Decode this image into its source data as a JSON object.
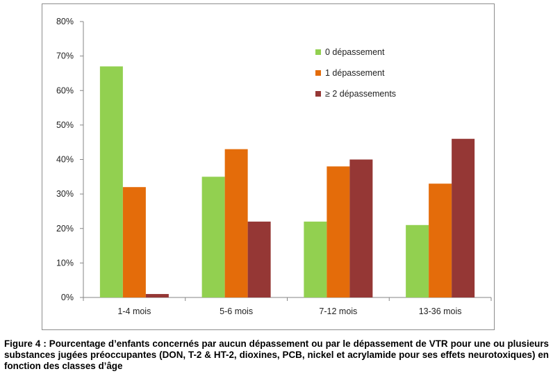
{
  "chart_data": {
    "type": "bar",
    "categories": [
      "1-4 mois",
      "5-6 mois",
      "7-12 mois",
      "13-36 mois"
    ],
    "series": [
      {
        "name": "0 dépassement",
        "color": "#92d050",
        "values": [
          67,
          35,
          22,
          21
        ]
      },
      {
        "name": "1 dépassement",
        "color": "#e46c0a",
        "values": [
          32,
          43,
          38,
          33
        ]
      },
      {
        "name": "≥ 2 dépassements",
        "color": "#953735",
        "values": [
          1,
          22,
          40,
          46
        ]
      }
    ],
    "yticks": [
      "0%",
      "10%",
      "20%",
      "30%",
      "40%",
      "50%",
      "60%",
      "70%",
      "80%"
    ],
    "ylim": [
      0,
      80
    ],
    "unit": "%",
    "legend_position": "top-right",
    "grid": false
  },
  "caption": "Figure 4 : Pourcentage d’enfants concernés par aucun dépassement ou par le dépassement de VTR pour une ou plusieurs substances jugées préoccupantes (DON, T-2 & HT-2, dioxines, PCB, nickel et acrylamide pour ses effets neurotoxiques) en fonction des classes d’âge"
}
